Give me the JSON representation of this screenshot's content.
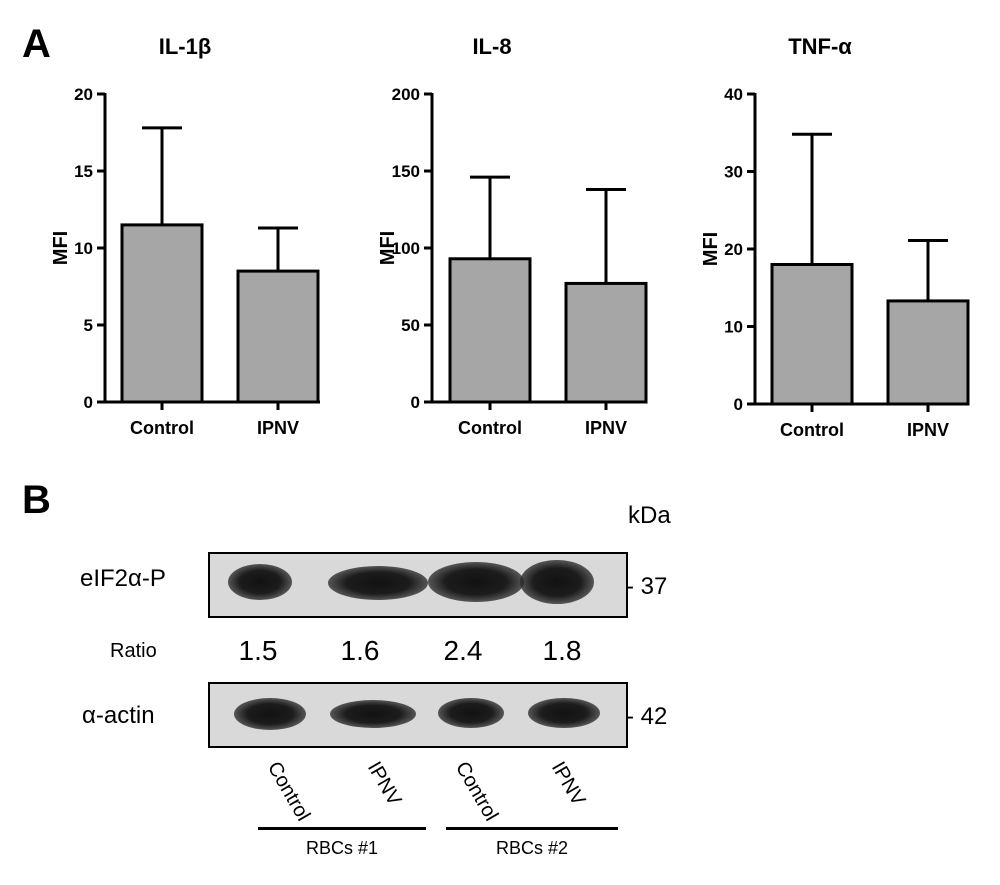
{
  "panel_a": {
    "letter": "A"
  },
  "panel_b": {
    "letter": "B",
    "unit": "kDa",
    "rows": [
      {
        "label": "eIF2α-P",
        "marker": "- 37"
      },
      {
        "label": "α-actin",
        "marker": "- 42"
      }
    ],
    "ratio_label": "Ratio",
    "ratios": [
      "1.5",
      "1.6",
      "2.4",
      "1.8"
    ],
    "lanes": [
      "Control",
      "IPNV",
      "Control",
      "IPNV"
    ],
    "groups": [
      "RBCs #1",
      "RBCs #2"
    ]
  },
  "chart_data": [
    {
      "type": "bar",
      "title": "IL-1β",
      "ylabel": "MFI",
      "categories": [
        "Control",
        "IPNV"
      ],
      "values": [
        11.5,
        8.5
      ],
      "error": [
        6.3,
        2.8
      ],
      "ylim": [
        0,
        20
      ],
      "yticks": [
        0,
        5,
        10,
        15,
        20
      ],
      "bar_color": "#a6a6a6"
    },
    {
      "type": "bar",
      "title": "IL-8",
      "ylabel": "MFI",
      "categories": [
        "Control",
        "IPNV"
      ],
      "values": [
        93,
        77
      ],
      "error": [
        53,
        61
      ],
      "ylim": [
        0,
        200
      ],
      "yticks": [
        0,
        50,
        100,
        150,
        200
      ],
      "bar_color": "#a6a6a6"
    },
    {
      "type": "bar",
      "title": "TNF-α",
      "ylabel": "MFI",
      "categories": [
        "Control",
        "IPNV"
      ],
      "values": [
        18,
        13.3
      ],
      "error": [
        16.8,
        7.8
      ],
      "ylim": [
        0,
        40
      ],
      "yticks": [
        0,
        10,
        20,
        30,
        40
      ],
      "bar_color": "#a6a6a6"
    }
  ]
}
